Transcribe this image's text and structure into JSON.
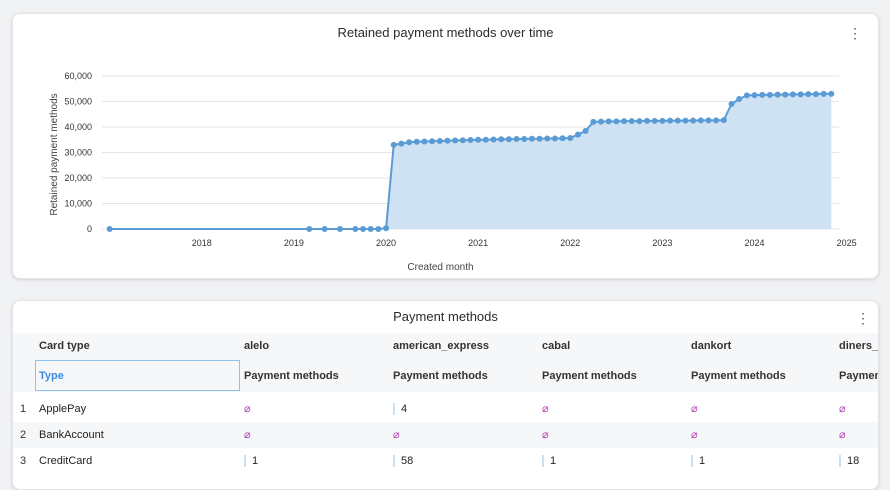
{
  "chart_card": {
    "title": "Retained payment methods over time",
    "menu_icon": "⋮"
  },
  "chart_data": {
    "type": "area",
    "title": "Retained payment methods over time",
    "xlabel": "Created month",
    "ylabel": "Retained payment methods",
    "x_ticks": [
      "2018",
      "2019",
      "2020",
      "2021",
      "2022",
      "2023",
      "2024",
      "2025"
    ],
    "y_ticks": [
      "0",
      "10,000",
      "20,000",
      "30,000",
      "40,000",
      "50,000",
      "60,000"
    ],
    "ylim": [
      0,
      60000
    ],
    "xlim": [
      "2017-06",
      "2025-06"
    ],
    "grid": true,
    "color": "#5b9bd5",
    "fill": "#cfe2f3",
    "series": [
      {
        "values": [
          {
            "x": "2017-07",
            "y": 0
          },
          {
            "x": "2019-09",
            "y": 0
          },
          {
            "x": "2019-11",
            "y": 0
          },
          {
            "x": "2020-01",
            "y": 0
          },
          {
            "x": "2020-03",
            "y": 0
          },
          {
            "x": "2020-04",
            "y": 0
          },
          {
            "x": "2020-05",
            "y": 0
          },
          {
            "x": "2020-06",
            "y": 0
          },
          {
            "x": "2020-07",
            "y": 300
          },
          {
            "x": "2020-08",
            "y": 33000
          },
          {
            "x": "2020-09",
            "y": 33500
          },
          {
            "x": "2020-10",
            "y": 34000
          },
          {
            "x": "2020-11",
            "y": 34200
          },
          {
            "x": "2020-12",
            "y": 34300
          },
          {
            "x": "2021-01",
            "y": 34400
          },
          {
            "x": "2021-02",
            "y": 34500
          },
          {
            "x": "2021-03",
            "y": 34600
          },
          {
            "x": "2021-04",
            "y": 34700
          },
          {
            "x": "2021-05",
            "y": 34800
          },
          {
            "x": "2021-06",
            "y": 34900
          },
          {
            "x": "2021-07",
            "y": 35000
          },
          {
            "x": "2021-08",
            "y": 35000
          },
          {
            "x": "2021-09",
            "y": 35100
          },
          {
            "x": "2021-10",
            "y": 35200
          },
          {
            "x": "2021-11",
            "y": 35200
          },
          {
            "x": "2021-12",
            "y": 35300
          },
          {
            "x": "2022-01",
            "y": 35300
          },
          {
            "x": "2022-02",
            "y": 35400
          },
          {
            "x": "2022-03",
            "y": 35400
          },
          {
            "x": "2022-04",
            "y": 35500
          },
          {
            "x": "2022-05",
            "y": 35500
          },
          {
            "x": "2022-06",
            "y": 35600
          },
          {
            "x": "2022-07",
            "y": 35700
          },
          {
            "x": "2022-08",
            "y": 37000
          },
          {
            "x": "2022-09",
            "y": 38500
          },
          {
            "x": "2022-10",
            "y": 42000
          },
          {
            "x": "2022-11",
            "y": 42100
          },
          {
            "x": "2022-12",
            "y": 42200
          },
          {
            "x": "2023-01",
            "y": 42200
          },
          {
            "x": "2023-02",
            "y": 42300
          },
          {
            "x": "2023-03",
            "y": 42300
          },
          {
            "x": "2023-04",
            "y": 42300
          },
          {
            "x": "2023-05",
            "y": 42400
          },
          {
            "x": "2023-06",
            "y": 42400
          },
          {
            "x": "2023-07",
            "y": 42400
          },
          {
            "x": "2023-08",
            "y": 42500
          },
          {
            "x": "2023-09",
            "y": 42500
          },
          {
            "x": "2023-10",
            "y": 42500
          },
          {
            "x": "2023-11",
            "y": 42500
          },
          {
            "x": "2023-12",
            "y": 42600
          },
          {
            "x": "2024-01",
            "y": 42600
          },
          {
            "x": "2024-02",
            "y": 42600
          },
          {
            "x": "2024-03",
            "y": 42700
          },
          {
            "x": "2024-04",
            "y": 49000
          },
          {
            "x": "2024-05",
            "y": 51000
          },
          {
            "x": "2024-06",
            "y": 52400
          },
          {
            "x": "2024-07",
            "y": 52500
          },
          {
            "x": "2024-08",
            "y": 52600
          },
          {
            "x": "2024-09",
            "y": 52600
          },
          {
            "x": "2024-10",
            "y": 52700
          },
          {
            "x": "2024-11",
            "y": 52700
          },
          {
            "x": "2024-12",
            "y": 52800
          },
          {
            "x": "2025-01",
            "y": 52800
          },
          {
            "x": "2025-02",
            "y": 52900
          },
          {
            "x": "2025-03",
            "y": 52900
          },
          {
            "x": "2025-04",
            "y": 53000
          },
          {
            "x": "2025-05",
            "y": 53000
          }
        ]
      }
    ]
  },
  "table_card": {
    "title": "Payment methods",
    "menu_icon": "⋮",
    "row_header_label": "Card type",
    "row_header_sub": "Type",
    "columns": [
      {
        "name": "alelo",
        "sub": "Payment methods"
      },
      {
        "name": "american_express",
        "sub": "Payment methods"
      },
      {
        "name": "cabal",
        "sub": "Payment methods"
      },
      {
        "name": "dankort",
        "sub": "Payment methods"
      },
      {
        "name": "diners_c",
        "sub": "Paymen"
      }
    ],
    "null_symbol": "⌀",
    "rows": [
      {
        "num": "1",
        "type": "ApplePay",
        "values": [
          null,
          "4",
          null,
          null,
          null
        ]
      },
      {
        "num": "2",
        "type": "BankAccount",
        "values": [
          null,
          null,
          null,
          null,
          null
        ]
      },
      {
        "num": "3",
        "type": "CreditCard",
        "values": [
          "1",
          "58",
          "1",
          "1",
          "18"
        ]
      }
    ]
  }
}
